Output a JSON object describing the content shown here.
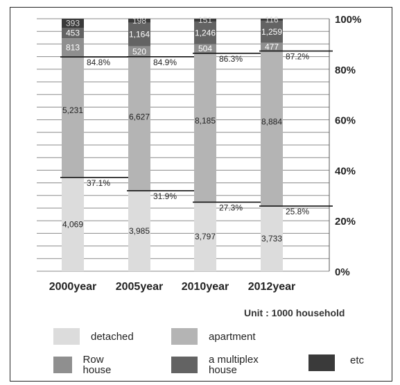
{
  "chart_data": {
    "type": "bar",
    "stacked": true,
    "normalized": true,
    "categories": [
      "2000year",
      "2005year",
      "2010year",
      "2012year"
    ],
    "series": [
      {
        "name": "detached",
        "values": [
          4069,
          3985,
          3797,
          3733
        ],
        "color": "#dcdcdc"
      },
      {
        "name": "apartment",
        "values": [
          5231,
          6627,
          8185,
          8884
        ],
        "color": "#b4b4b4"
      },
      {
        "name": "Row house",
        "values": [
          813,
          520,
          504,
          477
        ],
        "color": "#8f8f8f"
      },
      {
        "name": "a multiplex house",
        "values": [
          453,
          1164,
          1246,
          1259
        ],
        "color": "#636363"
      },
      {
        "name": "etc",
        "values": [
          393,
          198,
          151,
          116
        ],
        "color": "#3a3a3a"
      }
    ],
    "cumulative_labels": [
      {
        "category": "2000year",
        "detached_top": "37.1%",
        "apartment_top": "84.8%"
      },
      {
        "category": "2005year",
        "detached_top": "31.9%",
        "apartment_top": "84.9%"
      },
      {
        "category": "2010year",
        "detached_top": "27.3%",
        "apartment_top": "86.3%"
      },
      {
        "category": "2012year",
        "detached_top": "25.8%",
        "apartment_top": "87.2%"
      }
    ],
    "value_labels": {
      "detached": [
        "4,069",
        "3,985",
        "3,797",
        "3,733"
      ],
      "apartment": [
        "5,231",
        "6,627",
        "8,185",
        "8,884"
      ],
      "Row house": [
        "813",
        "520",
        "504",
        "477"
      ],
      "a multiplex house": [
        "453",
        "1,164",
        "1,246",
        "1,259"
      ],
      "etc": [
        "393",
        "198",
        "151",
        "116"
      ]
    },
    "y_ticks": [
      "0%",
      "20%",
      "40%",
      "60%",
      "80%",
      "100%"
    ],
    "y_axis_position": "right",
    "ylim": [
      0,
      100
    ],
    "grid": true,
    "legend_position": "bottom",
    "unit_label": "Unit : 1000 household"
  }
}
